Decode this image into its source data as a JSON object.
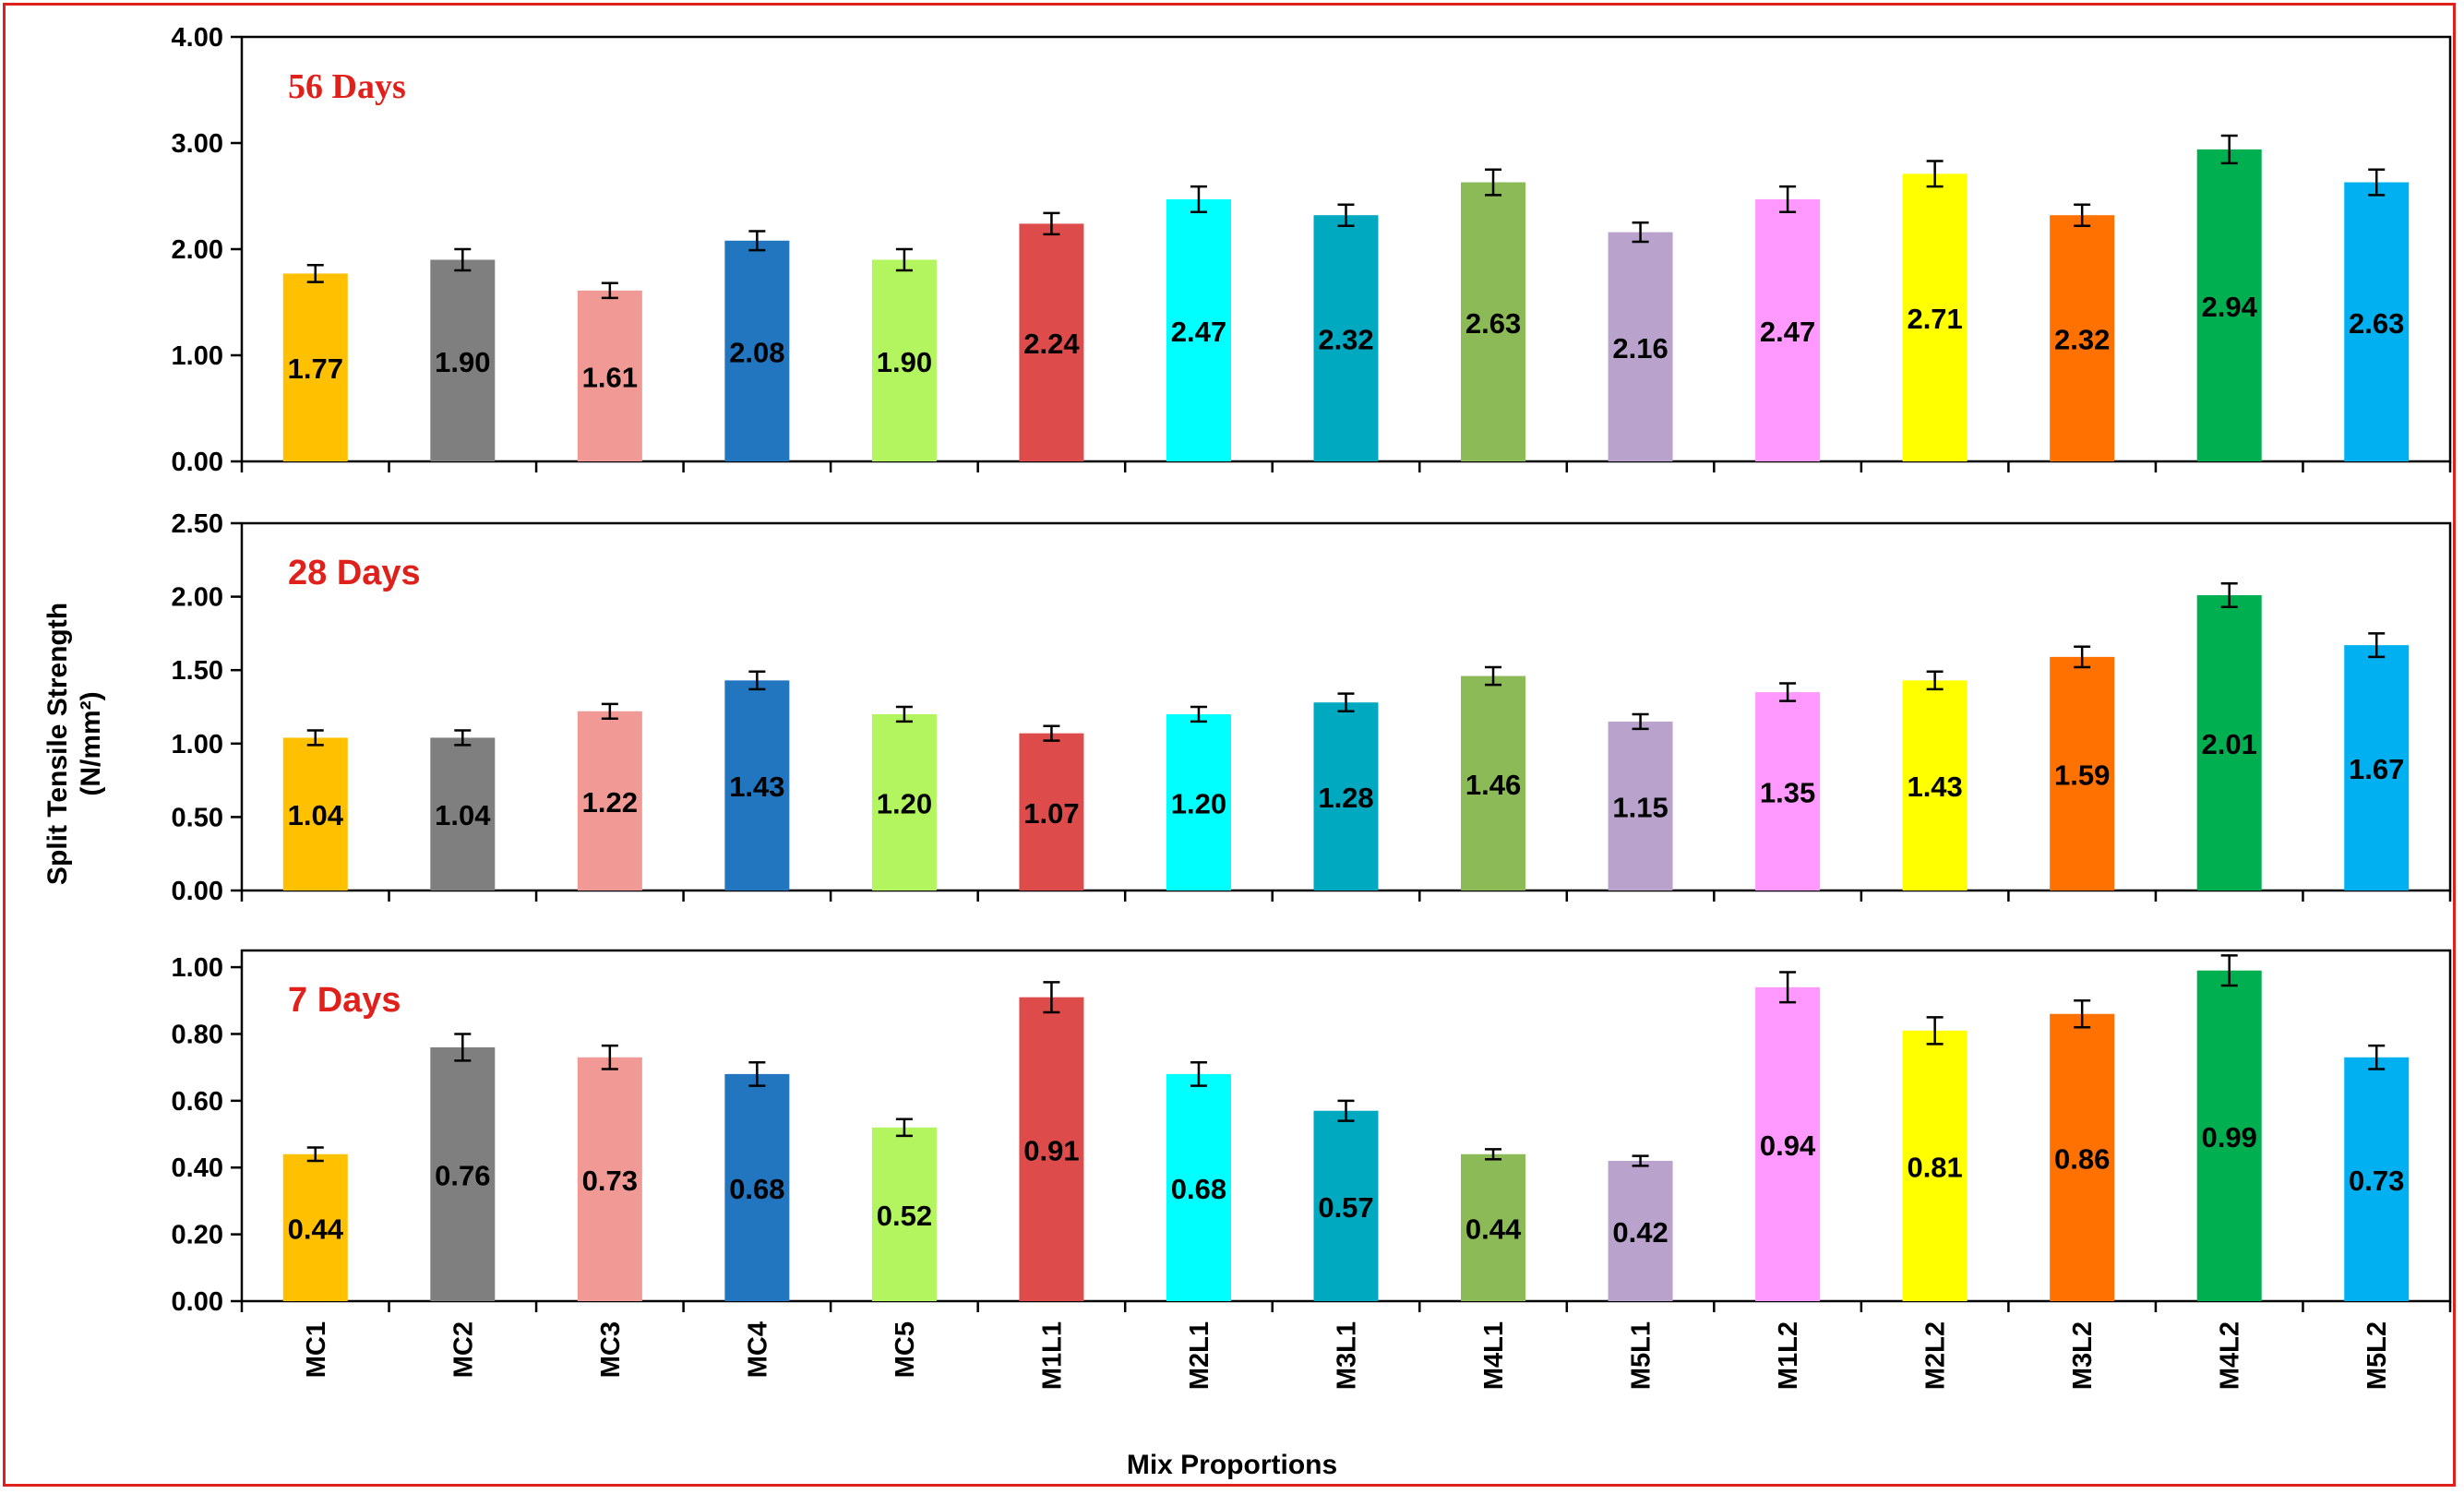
{
  "chart_data": {
    "type": "bar",
    "ylabel": "Split Tensile Strength",
    "ylabel_units": "(N/mm²)",
    "xlabel": "Mix Proportions",
    "categories": [
      "MC1",
      "MC2",
      "MC3",
      "MC4",
      "MC5",
      "M1L1",
      "M2L1",
      "M3L1",
      "M4L1",
      "M5L1",
      "M1L2",
      "M2L2",
      "M3L2",
      "M4L2",
      "M5L2"
    ],
    "colors": [
      "#ffc000",
      "#7f7f7f",
      "#f19a95",
      "#2176bf",
      "#b2f55e",
      "#de4b4b",
      "#00ffff",
      "#00a8c0",
      "#8bba56",
      "#b9a3cc",
      "#ff99ff",
      "#ffff00",
      "#ff7100",
      "#00b050",
      "#00b0f0"
    ],
    "panels": [
      {
        "title": "56 Days",
        "title_font": "serif",
        "ylim": [
          0,
          4
        ],
        "ticks": [
          0,
          1,
          2,
          3,
          4
        ],
        "tick_labels": [
          "0.00",
          "1.00",
          "2.00",
          "3.00",
          "4.00"
        ],
        "values": [
          1.77,
          1.9,
          1.61,
          2.08,
          1.9,
          2.24,
          2.47,
          2.32,
          2.63,
          2.16,
          2.47,
          2.71,
          2.32,
          2.94,
          2.63
        ],
        "labels": [
          "1.77",
          "1.90",
          "1.61",
          "2.08",
          "1.90",
          "2.24",
          "2.47",
          "2.32",
          "2.63",
          "2.16",
          "2.47",
          "2.71",
          "2.32",
          "2.94",
          "2.63"
        ],
        "errors": [
          0.08,
          0.1,
          0.07,
          0.09,
          0.1,
          0.1,
          0.12,
          0.1,
          0.12,
          0.09,
          0.12,
          0.12,
          0.1,
          0.13,
          0.12
        ]
      },
      {
        "title": "28 Days",
        "title_font": "sans",
        "ylim": [
          0,
          2.5
        ],
        "ticks": [
          0,
          0.5,
          1,
          1.5,
          2,
          2.5
        ],
        "tick_labels": [
          "0.00",
          "0.50",
          "1.00",
          "1.50",
          "2.00",
          "2.50"
        ],
        "values": [
          1.04,
          1.04,
          1.22,
          1.43,
          1.2,
          1.07,
          1.2,
          1.28,
          1.46,
          1.15,
          1.35,
          1.43,
          1.59,
          2.01,
          1.67
        ],
        "labels": [
          "1.04",
          "1.04",
          "1.22",
          "1.43",
          "1.20",
          "1.07",
          "1.20",
          "1.28",
          "1.46",
          "1.15",
          "1.35",
          "1.43",
          "1.59",
          "2.01",
          "1.67"
        ],
        "errors": [
          0.05,
          0.05,
          0.05,
          0.06,
          0.05,
          0.05,
          0.05,
          0.06,
          0.06,
          0.05,
          0.06,
          0.06,
          0.07,
          0.08,
          0.08
        ]
      },
      {
        "title": "7 Days",
        "title_font": "sans",
        "ylim": [
          0,
          1.05
        ],
        "ticks": [
          0,
          0.2,
          0.4,
          0.6,
          0.8,
          1.0
        ],
        "tick_labels": [
          "0.00",
          "0.20",
          "0.40",
          "0.60",
          "0.80",
          "1.00"
        ],
        "values": [
          0.44,
          0.76,
          0.73,
          0.68,
          0.52,
          0.91,
          0.68,
          0.57,
          0.44,
          0.42,
          0.94,
          0.81,
          0.86,
          0.99,
          0.73
        ],
        "labels": [
          "0.44",
          "0.76",
          "0.73",
          "0.68",
          "0.52",
          "0.91",
          "0.68",
          "0.57",
          "0.44",
          "0.42",
          "0.94",
          "0.81",
          "0.86",
          "0.99",
          "0.73"
        ],
        "errors": [
          0.02,
          0.04,
          0.035,
          0.035,
          0.025,
          0.045,
          0.035,
          0.03,
          0.015,
          0.015,
          0.045,
          0.04,
          0.04,
          0.045,
          0.035
        ]
      }
    ]
  }
}
